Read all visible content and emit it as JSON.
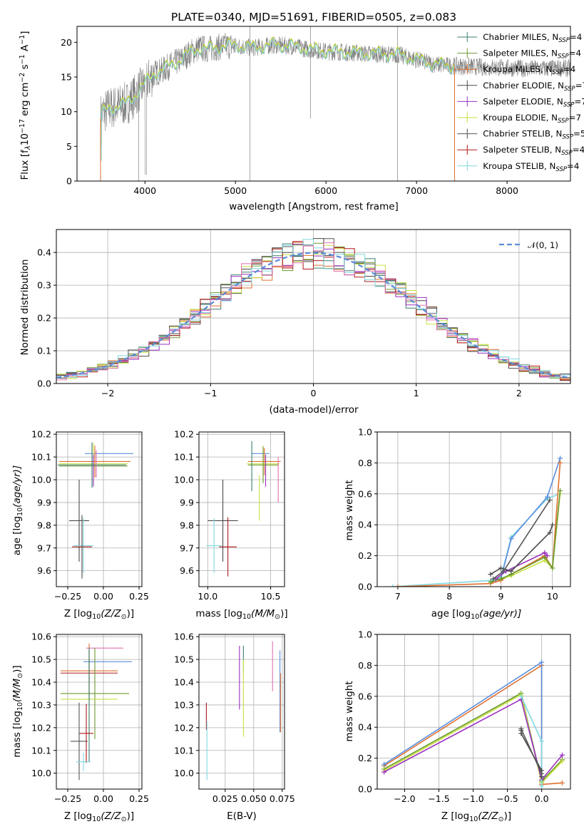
{
  "colors": {
    "chabrier_miles": "#3b7e72",
    "salpeter_miles": "#6a9a2e",
    "kroupa_miles": "#e07030",
    "chabrier_elodie": "#4a4a4a",
    "salpeter_elodie": "#9b30c0",
    "kroupa_elodie": "#c8e040",
    "chabrier_stelib": "#555555",
    "salpeter_stelib": "#b01818",
    "kroupa_stelib": "#80d8e0",
    "normal": "#5b8ad8",
    "pink": "#e070b0",
    "blue": "#5a8ee0",
    "green": "#5aa048"
  },
  "chart_data": [
    {
      "id": "spectrum",
      "type": "line",
      "title": "PLATE=0340, MJD=51691, FIBERID=0505, z=0.083",
      "xlabel": "wavelength [Angstrom, rest frame]",
      "ylabel_main": "Flux [f",
      "ylabel_sub": "λ",
      "ylabel_rest": "10",
      "ylabel_exp": "−17",
      "ylabel_tail1": " erg cm",
      "ylabel_exp2": "−2",
      "ylabel_tail2": " s",
      "ylabel_exp3": "−1",
      "ylabel_tail3": " A",
      "ylabel_exp4": "−1",
      "ylabel_end": "]",
      "xlim": [
        3250,
        8700
      ],
      "ylim": [
        0,
        22.3
      ],
      "xticks": [
        "4000",
        "5000",
        "6000",
        "7000",
        "8000"
      ],
      "xtick_values": [
        4000,
        5000,
        6000,
        7000,
        8000
      ],
      "yticks": [
        "0",
        "5",
        "10",
        "15",
        "20"
      ],
      "ytick_values": [
        0,
        5,
        10,
        15,
        20
      ],
      "continuum": [
        [
          3510,
          9.5
        ],
        [
          3600,
          10.5
        ],
        [
          3700,
          10.8
        ],
        [
          3800,
          11.2
        ],
        [
          3900,
          12.5
        ],
        [
          4000,
          14.0
        ],
        [
          4100,
          15.5
        ],
        [
          4200,
          16.0
        ],
        [
          4300,
          16.8
        ],
        [
          4400,
          17.5
        ],
        [
          4500,
          18.5
        ],
        [
          4600,
          19.2
        ],
        [
          4700,
          19.0
        ],
        [
          4800,
          19.3
        ],
        [
          4900,
          19.5
        ],
        [
          5000,
          19.5
        ],
        [
          5200,
          19.2
        ],
        [
          5400,
          19.6
        ],
        [
          5600,
          19.5
        ],
        [
          5800,
          19.0
        ],
        [
          6000,
          18.7
        ],
        [
          6200,
          18.6
        ],
        [
          6400,
          18.4
        ],
        [
          6600,
          18.3
        ],
        [
          6800,
          18.2
        ],
        [
          7000,
          17.5
        ],
        [
          7200,
          16.8
        ],
        [
          7400,
          16.6
        ],
        [
          7600,
          16.5
        ],
        [
          7800,
          16.4
        ],
        [
          8000,
          16.3
        ],
        [
          8200,
          16.2
        ],
        [
          8400,
          16.2
        ],
        [
          8600,
          16.3
        ],
        [
          8700,
          16.2
        ]
      ],
      "legend": [
        {
          "name": "Chabrier MILES, N",
          "sub": "SSP",
          "tail": "=4",
          "color": "#3b7e72"
        },
        {
          "name": "Salpeter MILES, N",
          "sub": "SSP",
          "tail": "=4",
          "color": "#6a9a2e"
        },
        {
          "name": "Kroupa MILES, N",
          "sub": "SSP",
          "tail": "=4",
          "color": "#e07030"
        },
        {
          "name": "Chabrier ELODIE, N",
          "sub": "SSP",
          "tail": "=7",
          "color": "#4a4a4a"
        },
        {
          "name": "Salpeter ELODIE, N",
          "sub": "SSP",
          "tail": "=7",
          "color": "#9b30c0"
        },
        {
          "name": "Kroupa ELODIE, N",
          "sub": "SSP",
          "tail": "=7",
          "color": "#c8e040"
        },
        {
          "name": "Chabrier STELIB, N",
          "sub": "SSP",
          "tail": "=5",
          "color": "#555555"
        },
        {
          "name": "Salpeter STELIB, N",
          "sub": "SSP",
          "tail": "=4",
          "color": "#b01818"
        },
        {
          "name": "Kroupa STELIB, N",
          "sub": "SSP",
          "tail": "=4",
          "color": "#80d8e0"
        }
      ]
    },
    {
      "id": "residuals",
      "type": "area",
      "xlabel": "(data-model)/error",
      "ylabel": "Normed distribution",
      "xlim": [
        -2.5,
        2.5
      ],
      "ylim": [
        0,
        0.47
      ],
      "xticks": [
        "−2",
        "−1",
        "0",
        "1",
        "2"
      ],
      "xtick_values": [
        -2,
        -1,
        0,
        1,
        2
      ],
      "yticks": [
        "0.0",
        "0.1",
        "0.2",
        "0.3",
        "0.4"
      ],
      "ytick_values": [
        0,
        0.1,
        0.2,
        0.3,
        0.4
      ],
      "bin_width": 0.1,
      "legend_label": "𝒩(0, 1)"
    },
    {
      "id": "age_vs_Z",
      "type": "scatter",
      "xlabel_pre": "Z [log",
      "xlabel_sub": "10",
      "xlabel_post": "(Z/Z",
      "xlabel_sub2": "⊙",
      "xlabel_end": ")]",
      "ylabel_pre": "age  [log",
      "ylabel_sub": "10",
      "ylabel_post": "(age/yr)]",
      "xlim": [
        -0.33,
        0.27
      ],
      "ylim": [
        9.53,
        10.21
      ],
      "xticks": [
        "−0.25",
        "0.00",
        "0.25"
      ],
      "xtick_values": [
        -0.25,
        0,
        0.25
      ],
      "yticks": [
        "9.6",
        "9.7",
        "9.8",
        "9.9",
        "10.0",
        "10.1",
        "10.2"
      ],
      "ytick_values": [
        9.6,
        9.7,
        9.8,
        9.9,
        10.0,
        10.1,
        10.2
      ],
      "points": [
        {
          "x": 0.04,
          "y": 10.115,
          "xerr": 0.17,
          "yerr": 0.0,
          "color": "#5a8ee0"
        },
        {
          "x": -0.06,
          "y": 10.08,
          "xerr": 0.25,
          "yerr": 0.07,
          "color": "#e07030"
        },
        {
          "x": -0.07,
          "y": 10.07,
          "xerr": 0.24,
          "yerr": 0.09,
          "color": "#c8e040"
        },
        {
          "x": -0.08,
          "y": 10.065,
          "xerr": 0.24,
          "yerr": 0.1,
          "color": "#3b7e72"
        },
        {
          "x": -0.07,
          "y": 10.06,
          "xerr": 0.24,
          "yerr": 0.0,
          "color": "#6a9a2e"
        },
        {
          "x": -0.05,
          "y": 10.07,
          "xerr": 0.0,
          "yerr": 0.06,
          "color": "#e070b0"
        },
        {
          "x": -0.07,
          "y": 10.04,
          "xerr": 0.0,
          "yerr": 0.07,
          "color": "#9b30c0"
        },
        {
          "x": -0.17,
          "y": 9.82,
          "xerr": 0.07,
          "yerr": 0.18,
          "color": "#4a4a4a"
        },
        {
          "x": -0.14,
          "y": 9.71,
          "xerr": 0.07,
          "yerr": 0.12,
          "color": "#80d8e0"
        },
        {
          "x": -0.15,
          "y": 9.705,
          "xerr": 0.07,
          "yerr": 0.13,
          "color": "#b01818"
        },
        {
          "x": -0.15,
          "y": 9.705,
          "xerr": 0.0,
          "yerr": 0.14,
          "color": "#555555"
        }
      ]
    },
    {
      "id": "age_vs_mass",
      "type": "scatter",
      "xlabel_pre": "mass [log",
      "xlabel_sub": "10",
      "xlabel_post": "(M/M",
      "xlabel_sub2": "⊙",
      "xlabel_end": ")]",
      "xlim": [
        9.93,
        10.61
      ],
      "ylim": [
        9.53,
        10.21
      ],
      "xticks": [
        "10.0",
        "10.5"
      ],
      "xtick_values": [
        10.0,
        10.5
      ],
      "yticks": [
        "9.6",
        "9.7",
        "9.8",
        "9.9",
        "10.0",
        "10.1",
        "10.2"
      ],
      "ytick_values": [
        9.6,
        9.7,
        9.8,
        9.9,
        10.0,
        10.1,
        10.2
      ],
      "points": [
        {
          "x": 10.42,
          "y": 10.115,
          "xerr": 0.07,
          "yerr": 0.0,
          "color": "#5a8ee0"
        },
        {
          "x": 10.45,
          "y": 10.08,
          "xerr": 0.13,
          "yerr": 0.06,
          "color": "#e07030"
        },
        {
          "x": 10.44,
          "y": 10.07,
          "xerr": 0.13,
          "yerr": 0.08,
          "color": "#c8e040"
        },
        {
          "x": 10.44,
          "y": 10.065,
          "xerr": 0.12,
          "yerr": 0.08,
          "color": "#6a9a2e"
        },
        {
          "x": 10.35,
          "y": 10.06,
          "xerr": 0.0,
          "yerr": 0.11,
          "color": "#3b7e72"
        },
        {
          "x": 10.56,
          "y": 10.0,
          "xerr": 0.0,
          "yerr": 0.1,
          "color": "#e070b0"
        },
        {
          "x": 10.46,
          "y": 10.04,
          "xerr": 0.0,
          "yerr": 0.07,
          "color": "#9b30c0"
        },
        {
          "x": 10.41,
          "y": 9.92,
          "xerr": 0.0,
          "yerr": 0.1,
          "color": "#c8e040"
        },
        {
          "x": 10.12,
          "y": 9.82,
          "xerr": 0.12,
          "yerr": 0.18,
          "color": "#4a4a4a"
        },
        {
          "x": 10.05,
          "y": 9.71,
          "xerr": 0.06,
          "yerr": 0.12,
          "color": "#80d8e0"
        },
        {
          "x": 10.16,
          "y": 9.705,
          "xerr": 0.07,
          "yerr": 0.13,
          "color": "#b01818"
        }
      ]
    },
    {
      "id": "massweight_vs_age",
      "type": "line",
      "xlabel_pre": "age  [log",
      "xlabel_sub": "10",
      "xlabel_post": "(age/yr)]",
      "ylabel": "mass weight",
      "xlim": [
        6.6,
        10.35
      ],
      "ylim": [
        0,
        1.0
      ],
      "xticks": [
        "7",
        "8",
        "9",
        "10"
      ],
      "xtick_values": [
        7,
        8,
        9,
        10
      ],
      "yticks": [
        "0.0",
        "0.2",
        "0.4",
        "0.6",
        "0.8",
        "1.0"
      ],
      "ytick_values": [
        0,
        0.2,
        0.4,
        0.6,
        0.8,
        1.0
      ],
      "series": [
        {
          "color": "#80d8e0",
          "x": [
            6.9,
            8.8,
            9.0,
            9.2,
            9.9,
            10.15
          ],
          "y": [
            0.0,
            0.04,
            0.06,
            0.32,
            0.57,
            0.6
          ]
        },
        {
          "color": "#5a8ee0",
          "x": [
            8.8,
            9.0,
            9.2,
            9.9,
            10.15
          ],
          "y": [
            0.03,
            0.05,
            0.31,
            0.58,
            0.83
          ]
        },
        {
          "color": "#e07030",
          "x": [
            7.0,
            8.8,
            9.0,
            9.2,
            9.85,
            10.0,
            10.15
          ],
          "y": [
            0.0,
            0.02,
            0.04,
            0.08,
            0.2,
            0.12,
            0.8
          ]
        },
        {
          "color": "#c8e040",
          "x": [
            8.8,
            9.0,
            9.2,
            9.85,
            10.0,
            10.15
          ],
          "y": [
            0.03,
            0.05,
            0.07,
            0.17,
            0.12,
            0.6
          ]
        },
        {
          "color": "#6a9a2e",
          "x": [
            8.8,
            9.0,
            9.2,
            9.85,
            10.0,
            10.15
          ],
          "y": [
            0.03,
            0.05,
            0.08,
            0.19,
            0.12,
            0.62
          ]
        },
        {
          "color": "#9b30c0",
          "x": [
            8.9,
            9.1,
            9.85,
            9.9
          ],
          "y": [
            0.05,
            0.1,
            0.22,
            0.2
          ]
        },
        {
          "color": "#4a4a4a",
          "x": [
            8.8,
            9.0,
            9.2,
            9.95,
            10.0
          ],
          "y": [
            0.08,
            0.12,
            0.1,
            0.35,
            0.4
          ]
        },
        {
          "color": "#555555",
          "x": [
            8.85,
            9.05,
            9.95
          ],
          "y": [
            0.05,
            0.1,
            0.56
          ]
        }
      ]
    },
    {
      "id": "mass_vs_Z",
      "type": "scatter",
      "xlabel_pre": "Z [log",
      "xlabel_sub": "10",
      "xlabel_post": "(Z/Z",
      "xlabel_sub2": "⊙",
      "xlabel_end": ")]",
      "ylabel_pre": "mass [log",
      "ylabel_sub": "10",
      "ylabel_post": "(M/M",
      "ylabel_sub2": "⊙",
      "ylabel_end": ")]",
      "xlim": [
        -0.33,
        0.27
      ],
      "ylim": [
        9.93,
        10.61
      ],
      "xticks": [
        "−0.25",
        "0.00",
        "0.25"
      ],
      "xtick_values": [
        -0.25,
        0,
        0.25
      ],
      "yticks": [
        "10.0",
        "10.1",
        "10.2",
        "10.3",
        "10.4",
        "10.5",
        "10.6"
      ],
      "ytick_values": [
        10.0,
        10.1,
        10.2,
        10.3,
        10.4,
        10.5,
        10.6
      ],
      "points": [
        {
          "x": 0.01,
          "y": 10.55,
          "xerr": 0.13,
          "yerr": 0.0,
          "color": "#e070b0"
        },
        {
          "x": 0.03,
          "y": 10.49,
          "xerr": 0.17,
          "yerr": 0.0,
          "color": "#5a8ee0"
        },
        {
          "x": -0.1,
          "y": 10.45,
          "xerr": 0.2,
          "yerr": 0.12,
          "color": "#e07030"
        },
        {
          "x": -0.1,
          "y": 10.44,
          "xerr": 0.2,
          "yerr": 0.1,
          "color": "#b01818"
        },
        {
          "x": -0.06,
          "y": 10.35,
          "xerr": 0.24,
          "yerr": 0.2,
          "color": "#6a9a2e"
        },
        {
          "x": -0.1,
          "y": 10.325,
          "xerr": 0.2,
          "yerr": 0.16,
          "color": "#c8e040"
        },
        {
          "x": -0.1,
          "y": 10.3,
          "xerr": 0.0,
          "yerr": 0.25,
          "color": "#3b7e72"
        },
        {
          "x": -0.12,
          "y": 10.175,
          "xerr": 0.05,
          "yerr": 0.13,
          "color": "#b01818"
        },
        {
          "x": -0.17,
          "y": 10.14,
          "xerr": 0.06,
          "yerr": 0.17,
          "color": "#555555"
        },
        {
          "x": -0.14,
          "y": 10.05,
          "xerr": 0.05,
          "yerr": 0.04,
          "color": "#80d8e0"
        }
      ]
    },
    {
      "id": "mass_vs_EBV",
      "type": "scatter",
      "xlabel": "E(B-V)",
      "xlim": [
        0.002,
        0.077
      ],
      "ylim": [
        9.93,
        10.61
      ],
      "xticks": [
        "0.025",
        "0.050",
        "0.075"
      ],
      "xtick_values": [
        0.025,
        0.05,
        0.075
      ],
      "yticks": [
        "10.0",
        "10.1",
        "10.2",
        "10.3",
        "10.4",
        "10.5",
        "10.6"
      ],
      "ytick_values": [
        10.0,
        10.1,
        10.2,
        10.3,
        10.4,
        10.5,
        10.6
      ],
      "points": [
        {
          "x": 0.0085,
          "y": 10.25,
          "xerr": 0.0,
          "yerr": 0.06,
          "color": "#b01818"
        },
        {
          "x": 0.009,
          "y": 10.1,
          "xerr": 0.0,
          "yerr": 0.13,
          "color": "#80d8e0"
        },
        {
          "x": 0.0375,
          "y": 10.42,
          "xerr": 0.0,
          "yerr": 0.14,
          "color": "#9b30c0"
        },
        {
          "x": 0.041,
          "y": 10.5,
          "xerr": 0.0,
          "yerr": 0.06,
          "color": "#3b7e72"
        },
        {
          "x": 0.041,
          "y": 10.33,
          "xerr": 0.0,
          "yerr": 0.17,
          "color": "#c8e040"
        },
        {
          "x": 0.0665,
          "y": 10.47,
          "xerr": 0.0,
          "yerr": 0.11,
          "color": "#e070b0"
        },
        {
          "x": 0.073,
          "y": 10.36,
          "xerr": 0.0,
          "yerr": 0.18,
          "color": "#5a8ee0"
        },
        {
          "x": 0.0735,
          "y": 10.31,
          "xerr": 0.0,
          "yerr": 0.13,
          "color": "#e07030"
        }
      ]
    },
    {
      "id": "massweight_vs_Z",
      "type": "line",
      "xlabel_pre": "Z [log",
      "xlabel_sub": "10",
      "xlabel_post": "(Z/Z",
      "xlabel_sub2": "⊙",
      "xlabel_end": ")]",
      "ylabel": "mass weight",
      "xlim": [
        -2.4,
        0.42
      ],
      "ylim": [
        0,
        1.0
      ],
      "xticks": [
        "−2.0",
        "−1.5",
        "−1.0",
        "−0.5",
        "0.0"
      ],
      "xtick_values": [
        -2.0,
        -1.5,
        -1.0,
        -0.5,
        0.0
      ],
      "yticks": [
        "0.0",
        "0.2",
        "0.4",
        "0.6",
        "0.8",
        "1.0"
      ],
      "ytick_values": [
        0,
        0.2,
        0.4,
        0.6,
        0.8,
        1.0
      ],
      "series": [
        {
          "color": "#e07030",
          "x": [
            -2.3,
            0.0,
            0.0,
            0.3
          ],
          "y": [
            0.15,
            0.8,
            0.03,
            0.04
          ]
        },
        {
          "color": "#5a8ee0",
          "x": [
            -2.3,
            0.0,
            0.0
          ],
          "y": [
            0.16,
            0.82,
            0.04
          ]
        },
        {
          "color": "#6a9a2e",
          "x": [
            -2.3,
            -0.3,
            0.0,
            0.3
          ],
          "y": [
            0.13,
            0.62,
            0.05,
            0.19
          ]
        },
        {
          "color": "#c8e040",
          "x": [
            -2.3,
            -0.3,
            0.0,
            0.3
          ],
          "y": [
            0.12,
            0.61,
            0.04,
            0.18
          ]
        },
        {
          "color": "#9b30c0",
          "x": [
            -2.3,
            -0.3,
            0.0,
            0.3
          ],
          "y": [
            0.11,
            0.58,
            0.06,
            0.22
          ]
        },
        {
          "color": "#80d8e0",
          "x": [
            -0.3,
            0.0,
            0.0
          ],
          "y": [
            0.6,
            0.31,
            0.02
          ]
        },
        {
          "color": "#4a4a4a",
          "x": [
            -0.3,
            -0.3,
            0.0,
            0.0
          ],
          "y": [
            0.38,
            0.36,
            0.12,
            0.08
          ]
        },
        {
          "color": "#555555",
          "x": [
            -0.3,
            0.0
          ],
          "y": [
            0.39,
            0.1
          ]
        }
      ]
    }
  ]
}
